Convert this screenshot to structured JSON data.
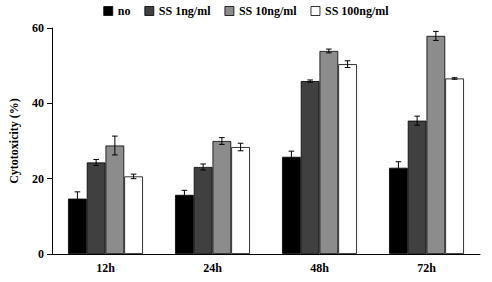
{
  "chart_data": {
    "type": "bar",
    "y_label": "Cytotoxicity (%)",
    "categories": [
      "12h",
      "24h",
      "48h",
      "72h"
    ],
    "series": [
      {
        "name": "no",
        "color": "#000000",
        "values": [
          14.7,
          15.7,
          25.8,
          22.9
        ],
        "errors": [
          1.8,
          1.2,
          1.5,
          1.6
        ]
      },
      {
        "name": "SS 1ng/ml",
        "color": "#404040",
        "values": [
          24.3,
          23.1,
          45.9,
          35.4
        ],
        "errors": [
          0.8,
          0.8,
          0.3,
          1.2
        ]
      },
      {
        "name": "SS 10ng/ml",
        "color": "#8c8c8c",
        "values": [
          28.8,
          30.0,
          53.9,
          57.9
        ],
        "errors": [
          2.5,
          0.9,
          0.5,
          1.2
        ]
      },
      {
        "name": "SS 100ng/ml",
        "color": "#ffffff",
        "values": [
          20.6,
          28.4,
          50.4,
          46.6
        ],
        "errors": [
          0.6,
          1.0,
          0.9,
          0.2
        ]
      }
    ],
    "ylim": [
      0,
      60
    ],
    "yticks": [
      0,
      20,
      40,
      60
    ],
    "grid": false,
    "legend": "top"
  }
}
